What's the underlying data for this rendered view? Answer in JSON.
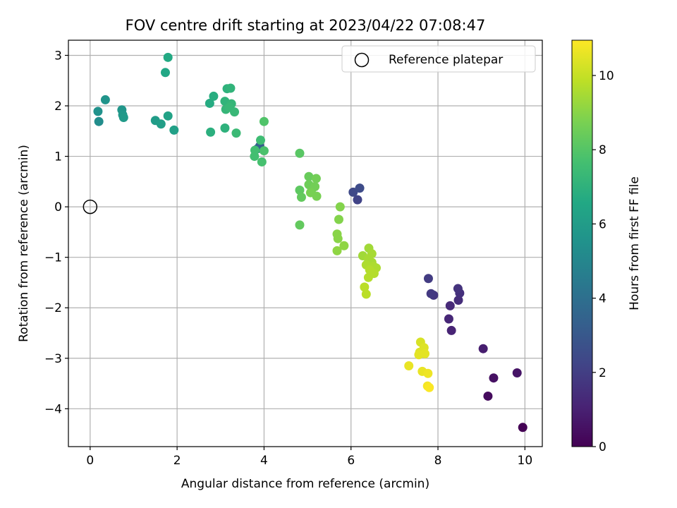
{
  "chart_data": {
    "type": "scatter",
    "title": "FOV centre drift starting at 2023/04/22 07:08:47",
    "xlabel": "Angular distance from reference (arcmin)",
    "ylabel": "Rotation from reference (arcmin)",
    "xlim": [
      -0.5,
      10.4
    ],
    "ylim": [
      -4.75,
      3.3
    ],
    "xticks": [
      0,
      2,
      4,
      6,
      8,
      10
    ],
    "yticks": [
      -4,
      -3,
      -2,
      -1,
      0,
      1,
      2,
      3
    ],
    "xtick_labels": [
      "0",
      "2",
      "4",
      "6",
      "8",
      "10"
    ],
    "ytick_labels": [
      "−4",
      "−3",
      "−2",
      "−1",
      "0",
      "1",
      "2",
      "3"
    ],
    "grid": true,
    "colormap": "viridis",
    "colorbar": {
      "label": "Hours from first FF file",
      "range": [
        0,
        10.95
      ],
      "ticks": [
        0,
        2,
        4,
        6,
        8,
        10
      ],
      "tick_labels": [
        "0",
        "2",
        "4",
        "6",
        "8",
        "10"
      ]
    },
    "legend": {
      "position": "top-right",
      "entries": [
        {
          "label": "Reference platepar",
          "marker": "open-circle"
        }
      ]
    },
    "reference_point": {
      "x": 0,
      "y": 0
    },
    "points": [
      {
        "x": 9.95,
        "y": -4.37,
        "c": 0.0
      },
      {
        "x": 9.15,
        "y": -3.75,
        "c": 0.3
      },
      {
        "x": 9.28,
        "y": -3.39,
        "c": 0.5
      },
      {
        "x": 9.82,
        "y": -3.29,
        "c": 0.6
      },
      {
        "x": 9.04,
        "y": -2.81,
        "c": 0.9
      },
      {
        "x": 8.31,
        "y": -2.45,
        "c": 1.1
      },
      {
        "x": 8.25,
        "y": -2.22,
        "c": 1.2
      },
      {
        "x": 8.28,
        "y": -1.96,
        "c": 1.3
      },
      {
        "x": 8.47,
        "y": -1.85,
        "c": 1.4
      },
      {
        "x": 8.5,
        "y": -1.71,
        "c": 1.5
      },
      {
        "x": 8.46,
        "y": -1.62,
        "c": 1.6
      },
      {
        "x": 7.9,
        "y": -1.75,
        "c": 1.7
      },
      {
        "x": 7.84,
        "y": -1.72,
        "c": 1.8
      },
      {
        "x": 7.78,
        "y": -1.42,
        "c": 1.9
      },
      {
        "x": 6.15,
        "y": 0.14,
        "c": 2.2
      },
      {
        "x": 6.05,
        "y": 0.29,
        "c": 2.4
      },
      {
        "x": 6.2,
        "y": 0.37,
        "c": 2.5
      },
      {
        "x": 3.9,
        "y": 1.2,
        "c": 3.2
      },
      {
        "x": 3.85,
        "y": 1.15,
        "c": 3.4
      },
      {
        "x": 0.2,
        "y": 1.69,
        "c": 5.3
      },
      {
        "x": 0.18,
        "y": 1.89,
        "c": 5.5
      },
      {
        "x": 0.35,
        "y": 2.12,
        "c": 5.6
      },
      {
        "x": 0.73,
        "y": 1.92,
        "c": 5.7
      },
      {
        "x": 0.75,
        "y": 1.82,
        "c": 5.8
      },
      {
        "x": 0.77,
        "y": 1.77,
        "c": 5.9
      },
      {
        "x": 1.5,
        "y": 1.71,
        "c": 6.0
      },
      {
        "x": 1.63,
        "y": 1.64,
        "c": 6.1
      },
      {
        "x": 1.93,
        "y": 1.52,
        "c": 6.2
      },
      {
        "x": 1.79,
        "y": 1.8,
        "c": 6.3
      },
      {
        "x": 1.73,
        "y": 2.66,
        "c": 6.5
      },
      {
        "x": 1.79,
        "y": 2.96,
        "c": 6.6
      },
      {
        "x": 2.75,
        "y": 2.05,
        "c": 6.7
      },
      {
        "x": 2.84,
        "y": 2.19,
        "c": 6.8
      },
      {
        "x": 2.77,
        "y": 1.48,
        "c": 6.9
      },
      {
        "x": 3.1,
        "y": 1.56,
        "c": 7.0
      },
      {
        "x": 3.15,
        "y": 2.34,
        "c": 7.0
      },
      {
        "x": 3.23,
        "y": 2.35,
        "c": 7.1
      },
      {
        "x": 3.1,
        "y": 2.09,
        "c": 7.1
      },
      {
        "x": 3.25,
        "y": 2.04,
        "c": 7.2
      },
      {
        "x": 3.12,
        "y": 1.93,
        "c": 7.2
      },
      {
        "x": 3.2,
        "y": 1.97,
        "c": 7.3
      },
      {
        "x": 3.32,
        "y": 1.88,
        "c": 7.3
      },
      {
        "x": 3.36,
        "y": 1.46,
        "c": 7.4
      },
      {
        "x": 3.92,
        "y": 1.32,
        "c": 7.5
      },
      {
        "x": 3.79,
        "y": 1.12,
        "c": 7.6
      },
      {
        "x": 3.78,
        "y": 1.0,
        "c": 7.6
      },
      {
        "x": 3.95,
        "y": 0.89,
        "c": 7.7
      },
      {
        "x": 4.0,
        "y": 1.11,
        "c": 7.8
      },
      {
        "x": 4.0,
        "y": 1.69,
        "c": 7.9
      },
      {
        "x": 4.82,
        "y": 1.06,
        "c": 8.1
      },
      {
        "x": 4.82,
        "y": 0.33,
        "c": 8.2
      },
      {
        "x": 4.86,
        "y": 0.19,
        "c": 8.3
      },
      {
        "x": 4.82,
        "y": -0.36,
        "c": 8.3
      },
      {
        "x": 5.03,
        "y": 0.6,
        "c": 8.4
      },
      {
        "x": 5.03,
        "y": 0.44,
        "c": 8.5
      },
      {
        "x": 5.1,
        "y": 0.35,
        "c": 8.5
      },
      {
        "x": 5.2,
        "y": 0.56,
        "c": 8.6
      },
      {
        "x": 5.17,
        "y": 0.4,
        "c": 8.6
      },
      {
        "x": 5.07,
        "y": 0.28,
        "c": 8.7
      },
      {
        "x": 5.21,
        "y": 0.21,
        "c": 8.7
      },
      {
        "x": 5.75,
        "y": 0.0,
        "c": 8.9
      },
      {
        "x": 5.72,
        "y": -0.25,
        "c": 8.9
      },
      {
        "x": 5.68,
        "y": -0.54,
        "c": 9.0
      },
      {
        "x": 5.7,
        "y": -0.63,
        "c": 9.0
      },
      {
        "x": 5.84,
        "y": -0.77,
        "c": 9.1
      },
      {
        "x": 5.68,
        "y": -0.87,
        "c": 9.1
      },
      {
        "x": 6.41,
        "y": -0.82,
        "c": 9.4
      },
      {
        "x": 6.27,
        "y": -0.97,
        "c": 9.4
      },
      {
        "x": 6.48,
        "y": -0.93,
        "c": 9.5
      },
      {
        "x": 6.4,
        "y": -1.03,
        "c": 9.5
      },
      {
        "x": 6.48,
        "y": -1.1,
        "c": 9.5
      },
      {
        "x": 6.35,
        "y": -1.15,
        "c": 9.6
      },
      {
        "x": 6.52,
        "y": -1.18,
        "c": 9.6
      },
      {
        "x": 6.58,
        "y": -1.21,
        "c": 9.6
      },
      {
        "x": 6.43,
        "y": -1.25,
        "c": 9.7
      },
      {
        "x": 6.53,
        "y": -1.32,
        "c": 9.7
      },
      {
        "x": 6.4,
        "y": -1.4,
        "c": 9.7
      },
      {
        "x": 6.31,
        "y": -1.59,
        "c": 9.8
      },
      {
        "x": 6.35,
        "y": -1.73,
        "c": 9.8
      },
      {
        "x": 7.6,
        "y": -2.68,
        "c": 10.3
      },
      {
        "x": 7.68,
        "y": -2.79,
        "c": 10.4
      },
      {
        "x": 7.58,
        "y": -2.88,
        "c": 10.4
      },
      {
        "x": 7.7,
        "y": -2.91,
        "c": 10.5
      },
      {
        "x": 7.56,
        "y": -2.93,
        "c": 10.5
      },
      {
        "x": 7.33,
        "y": -3.15,
        "c": 10.6
      },
      {
        "x": 7.64,
        "y": -3.26,
        "c": 10.6
      },
      {
        "x": 7.77,
        "y": -3.3,
        "c": 10.7
      },
      {
        "x": 7.76,
        "y": -3.55,
        "c": 10.8
      },
      {
        "x": 7.8,
        "y": -3.58,
        "c": 10.9
      }
    ]
  }
}
